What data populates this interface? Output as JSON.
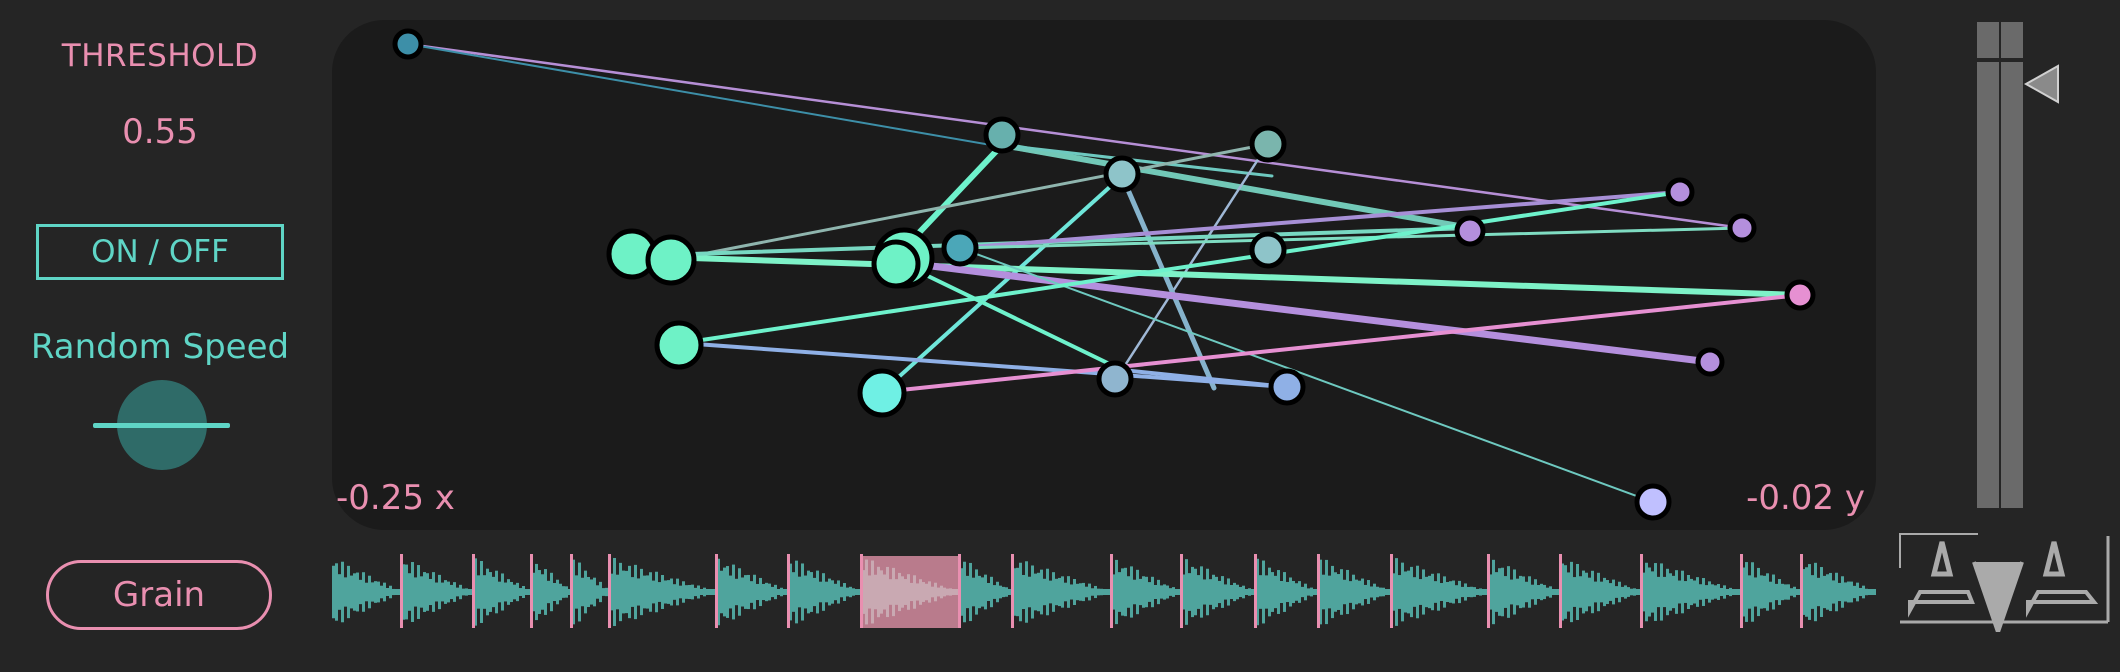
{
  "threshold": {
    "label": "THRESHOLD",
    "value": "0.55"
  },
  "toggle": {
    "label": "ON / OFF"
  },
  "random_speed": {
    "label": "Random Speed"
  },
  "grain": {
    "label": "Grain"
  },
  "readout": {
    "x": "-0.25 x",
    "y": "-0.02 y"
  },
  "icons": [
    "slider-pointer-icon",
    "logo-icon"
  ],
  "colors": {
    "pink": "#e98fb0",
    "teal": "#5fd5c6",
    "background": "#252525",
    "plot": "#1b1b1b",
    "wave": "#4fa49d",
    "selection": "#b97b8c"
  }
}
